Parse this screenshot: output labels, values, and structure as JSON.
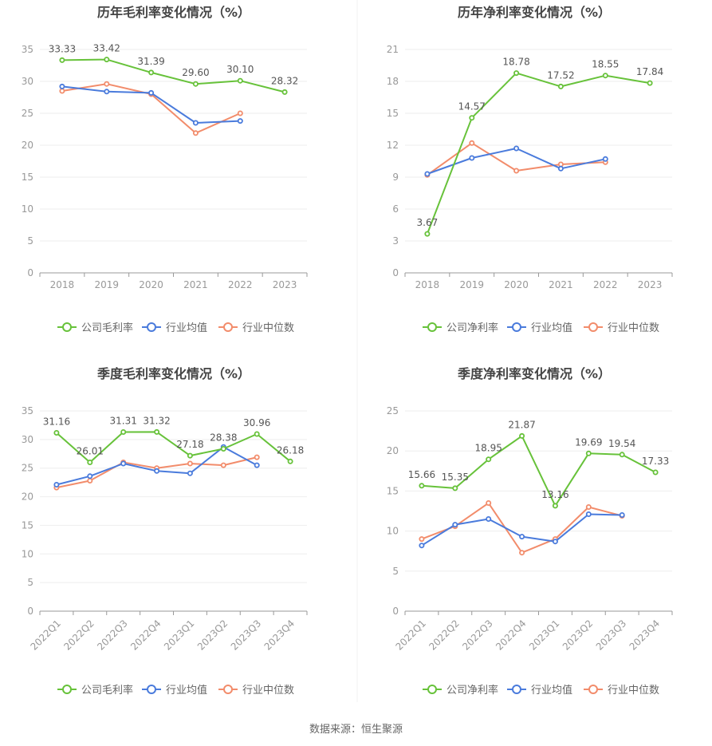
{
  "colors": {
    "company": "#67c23a",
    "avg": "#4a7bdc",
    "median": "#f28c6b",
    "axis_text": "#999999",
    "title_text": "#444444",
    "grid": "#eeeeee",
    "axis_line": "#999999"
  },
  "legend_labels": {
    "gross": [
      "公司毛利率",
      "行业均值",
      "行业中位数"
    ],
    "net": [
      "公司净利率",
      "行业均值",
      "行业中位数"
    ]
  },
  "footer": {
    "source": "数据来源：恒生聚源"
  },
  "chart_data": [
    {
      "type": "line",
      "title": "历年毛利率变化情况（%）",
      "categories": [
        "2018",
        "2019",
        "2020",
        "2021",
        "2022",
        "2023"
      ],
      "ylim": [
        0,
        35
      ],
      "yticks": [
        0,
        5,
        10,
        15,
        20,
        25,
        30,
        35
      ],
      "grid": true,
      "legend": "bottom",
      "series": [
        {
          "name": "公司毛利率",
          "values": [
            33.33,
            33.42,
            31.39,
            29.6,
            30.1,
            28.32
          ],
          "labels": [
            "33.33",
            "33.42",
            "31.39",
            "29.60",
            "30.10",
            "28.32"
          ]
        },
        {
          "name": "行业均值",
          "values": [
            29.2,
            28.4,
            28.2,
            23.5,
            23.8,
            null
          ]
        },
        {
          "name": "行业中位数",
          "values": [
            28.5,
            29.6,
            28.0,
            21.9,
            25.0,
            null
          ]
        }
      ]
    },
    {
      "type": "line",
      "title": "历年净利率变化情况（%）",
      "categories": [
        "2018",
        "2019",
        "2020",
        "2021",
        "2022",
        "2023"
      ],
      "ylim": [
        0,
        21
      ],
      "yticks": [
        0,
        3,
        6,
        9,
        12,
        15,
        18,
        21
      ],
      "grid": true,
      "legend": "bottom",
      "series": [
        {
          "name": "公司净利率",
          "values": [
            3.67,
            14.57,
            18.78,
            17.52,
            18.55,
            17.84
          ],
          "labels": [
            "3.67",
            "14.57",
            "18.78",
            "17.52",
            "18.55",
            "17.84"
          ]
        },
        {
          "name": "行业均值",
          "values": [
            9.3,
            10.8,
            11.7,
            9.8,
            10.7,
            null
          ]
        },
        {
          "name": "行业中位数",
          "values": [
            9.2,
            12.2,
            9.6,
            10.2,
            10.4,
            null
          ]
        }
      ]
    },
    {
      "type": "line",
      "title": "季度毛利率变化情况（%）",
      "categories": [
        "2022Q1",
        "2022Q2",
        "2022Q3",
        "2022Q4",
        "2023Q1",
        "2023Q2",
        "2023Q3",
        "2023Q4"
      ],
      "ylim": [
        0,
        35
      ],
      "yticks": [
        0,
        5,
        10,
        15,
        20,
        25,
        30,
        35
      ],
      "grid": true,
      "legend": "bottom",
      "series": [
        {
          "name": "公司毛利率",
          "values": [
            31.16,
            26.01,
            31.31,
            31.32,
            27.18,
            28.38,
            30.96,
            26.18
          ],
          "labels": [
            "31.16",
            "26.01",
            "31.31",
            "31.32",
            "27.18",
            "28.38",
            "30.96",
            "26.18"
          ]
        },
        {
          "name": "行业均值",
          "values": [
            22.1,
            23.6,
            25.8,
            24.5,
            24.1,
            28.7,
            25.5,
            null
          ]
        },
        {
          "name": "行业中位数",
          "values": [
            21.6,
            22.8,
            26.0,
            25.0,
            25.8,
            25.5,
            26.9,
            null
          ]
        }
      ]
    },
    {
      "type": "line",
      "title": "季度净利率变化情况（%）",
      "categories": [
        "2022Q1",
        "2022Q2",
        "2022Q3",
        "2022Q4",
        "2023Q1",
        "2023Q2",
        "2023Q3",
        "2023Q4"
      ],
      "ylim": [
        0,
        25
      ],
      "yticks": [
        0,
        5,
        10,
        15,
        20,
        25
      ],
      "grid": true,
      "legend": "bottom",
      "series": [
        {
          "name": "公司净利率",
          "values": [
            15.66,
            15.35,
            18.95,
            21.87,
            13.16,
            19.69,
            19.54,
            17.33
          ],
          "labels": [
            "15.66",
            "15.35",
            "18.95",
            "21.87",
            "13.16",
            "19.69",
            "19.54",
            "17.33"
          ]
        },
        {
          "name": "行业均值",
          "values": [
            8.2,
            10.8,
            11.5,
            9.3,
            8.7,
            12.1,
            12.0,
            null
          ]
        },
        {
          "name": "行业中位数",
          "values": [
            9.0,
            10.6,
            13.5,
            7.3,
            9.0,
            13.0,
            11.9,
            null
          ]
        }
      ]
    }
  ]
}
